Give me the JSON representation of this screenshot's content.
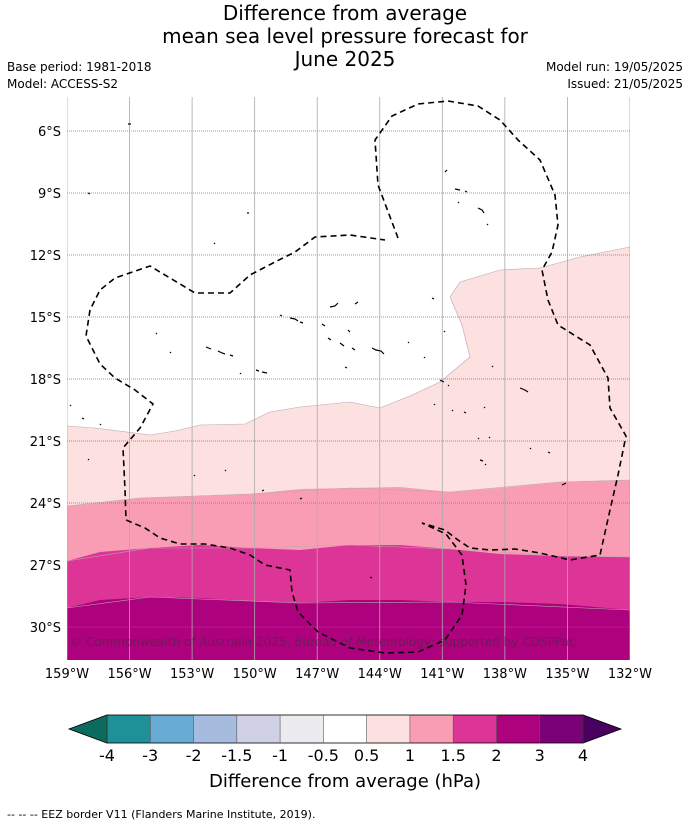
{
  "title_lines": [
    "Difference from average",
    "mean sea level pressure forecast for",
    "June 2025"
  ],
  "base_period": "Base period: 1981-2018",
  "model": "Model: ACCESS-S2",
  "model_run": "Model run: 19/05/2025",
  "issued": "Issued: 21/05/2025",
  "copyright": "© Commonwealth of Australia 2025, Bureau of Meteorology; supported by COSPPac",
  "lat_labels": [
    "6°S",
    "9°S",
    "12°S",
    "15°S",
    "18°S",
    "21°S",
    "24°S",
    "27°S",
    "30°S"
  ],
  "lon_labels": [
    "159°W",
    "156°W",
    "153°W",
    "150°W",
    "147°W",
    "144°W",
    "141°W",
    "138°W",
    "135°W",
    "132°W"
  ],
  "colorbar": {
    "label": "Difference from average (hPa)",
    "ticks": [
      "-4",
      "-3",
      "-2",
      "-1.5",
      "-1",
      "-0.5",
      "0.5",
      "1",
      "1.5",
      "2",
      "3",
      "4"
    ],
    "under_color": "#0b6b5f",
    "colors": [
      "#1e9098",
      "#68acd3",
      "#a6bcdf",
      "#d0d1e6",
      "#ececf0",
      "#ffffff",
      "#fde0e0",
      "#f99db4",
      "#dd3497",
      "#ae017e",
      "#7a0177"
    ],
    "over_color": "#4a0060"
  },
  "map_colors": {
    "level_0_5_to_1": "#fde0e0",
    "level_1_to_1_5": "#f99db4",
    "level_1_5_to_2": "#dd3497",
    "level_2_to_3": "#ae017e"
  },
  "footer": "--  --  -- EEZ border V11 (Flanders Marine Institute, 2019)."
}
